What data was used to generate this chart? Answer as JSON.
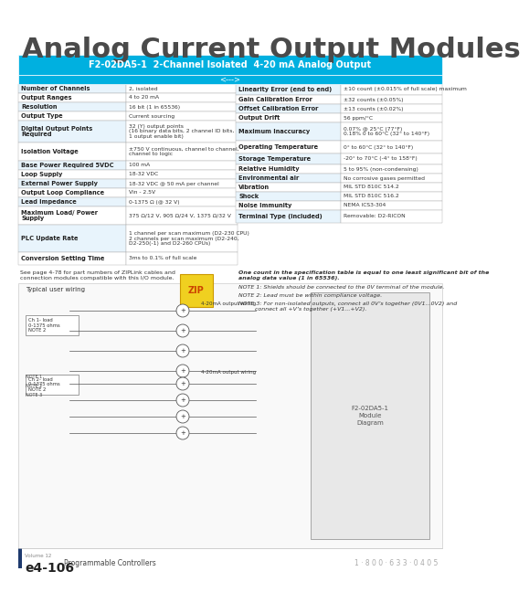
{
  "title": "Analog Current Output Modules",
  "title_color": "#4a4a4a",
  "title_fontsize": 22,
  "title_fontstyle": "bold",
  "table_header": "F2-02DA5-1  2-Channel Isolated  4-20 mA Analog Output",
  "table_header_sub": "<--->",
  "table_header_bg": "#00b0e0",
  "table_header_color": "white",
  "left_table": [
    [
      "Number of Channels",
      "2, isolated"
    ],
    [
      "Output Ranges",
      "4 to 20 mA"
    ],
    [
      "Resolution",
      "16 bit (1 in 65536)"
    ],
    [
      "Output Type",
      "Current sourcing"
    ],
    [
      "Digital Output Points\nRequired",
      "32 (Y) output points\n(16 binary data bits, 2 channel ID bits,\n1 output enable bit)"
    ],
    [
      "Isolation Voltage",
      "±750 V continuous, channel to channel,\nchannel to logic"
    ],
    [
      "Base Power Required 5VDC",
      "100 mA"
    ],
    [
      "Loop Supply",
      "18-32 VDC"
    ],
    [
      "External Power Supply",
      "18-32 VDC @ 50 mA per channel"
    ],
    [
      "Output Loop Compliance",
      "Vin - 2.5V"
    ],
    [
      "Lead Impedance",
      "0-1375 Ω (@ 32 V)"
    ],
    [
      "Maximum Load/ Power\nSupply",
      "375 Ω/12 V, 905 Ω/24 V, 1375 Ω/32 V"
    ],
    [
      "PLC Update Rate",
      "1 channel per scan maximum (D2-230 CPU)\n2 channels per scan maximum (D2-240,\nD2-250(-1) and D2-260 CPUs)"
    ],
    [
      "Conversion Setting Time",
      "3ms to 0.1% of full scale"
    ]
  ],
  "right_table": [
    [
      "Linearity Error (end to end)",
      "±10 count (±0.015% of full scale) maximum"
    ],
    [
      "Gain Calibration Error",
      "±32 counts (±0.05%)"
    ],
    [
      "Offset Calibration Error",
      "±13 counts (±0.02%)"
    ],
    [
      "Output Drift",
      "56 ppm/°C"
    ],
    [
      "Maximum Inaccuracy",
      "0.07% @ 25°C (77°F)\n0.18% 0 to 60°C (32° to 140°F)"
    ],
    [
      "Operating Temperature",
      "0° to 60°C (32° to 140°F)"
    ],
    [
      "Storage Temperature",
      "-20° to 70°C (-4° to 158°F)"
    ],
    [
      "Relative Humidity",
      "5 to 95% (non-condensing)"
    ],
    [
      "Environmental air",
      "No corrosive gases permitted"
    ],
    [
      "Vibration",
      "MIL STD 810C 514.2"
    ],
    [
      "Shock",
      "MIL STD 810C 516.2"
    ],
    [
      "Noise Immunity",
      "NEMA ICS3-304"
    ],
    [
      "Terminal Type (included)",
      "Removable: D2-RICON"
    ]
  ],
  "notes": [
    "One count in the specification table is equal to one least significant bit of the\nanalog data value (1 in 65536).",
    "NOTE 1: Shields should be connected to the 0V terminal of the module.",
    "NOTE 2: Lead must be within compliance voltage.",
    "NOTE 3: For non-isolated outputs, connect all 0V’s together (0V1...0V2) and\n         connect all +V’s together (+V1...+V2)."
  ],
  "see_page_text": "See page 4-78 for part numbers of ZIPLink cables and\nconnection modules compatible with this I/O module.",
  "footer_page": "Volume 12",
  "footer_label": "e4-106",
  "footer_section": "Programmable Controllers",
  "footer_phone": "1 · 8 0 0 · 6 3 3 · 0 4 0 5",
  "footer_bar_color": "#1e3a6e",
  "bg_color": "white",
  "table_border_color": "#888888",
  "left_col_bg": "#e8f4fc",
  "right_col_bg": "white",
  "alt_row_bg": "#f5f5f5",
  "header_row_bg": "#d0eaf8",
  "bold_label_color": "#222222",
  "normal_text_color": "#333333",
  "link_color": "#0055aa"
}
